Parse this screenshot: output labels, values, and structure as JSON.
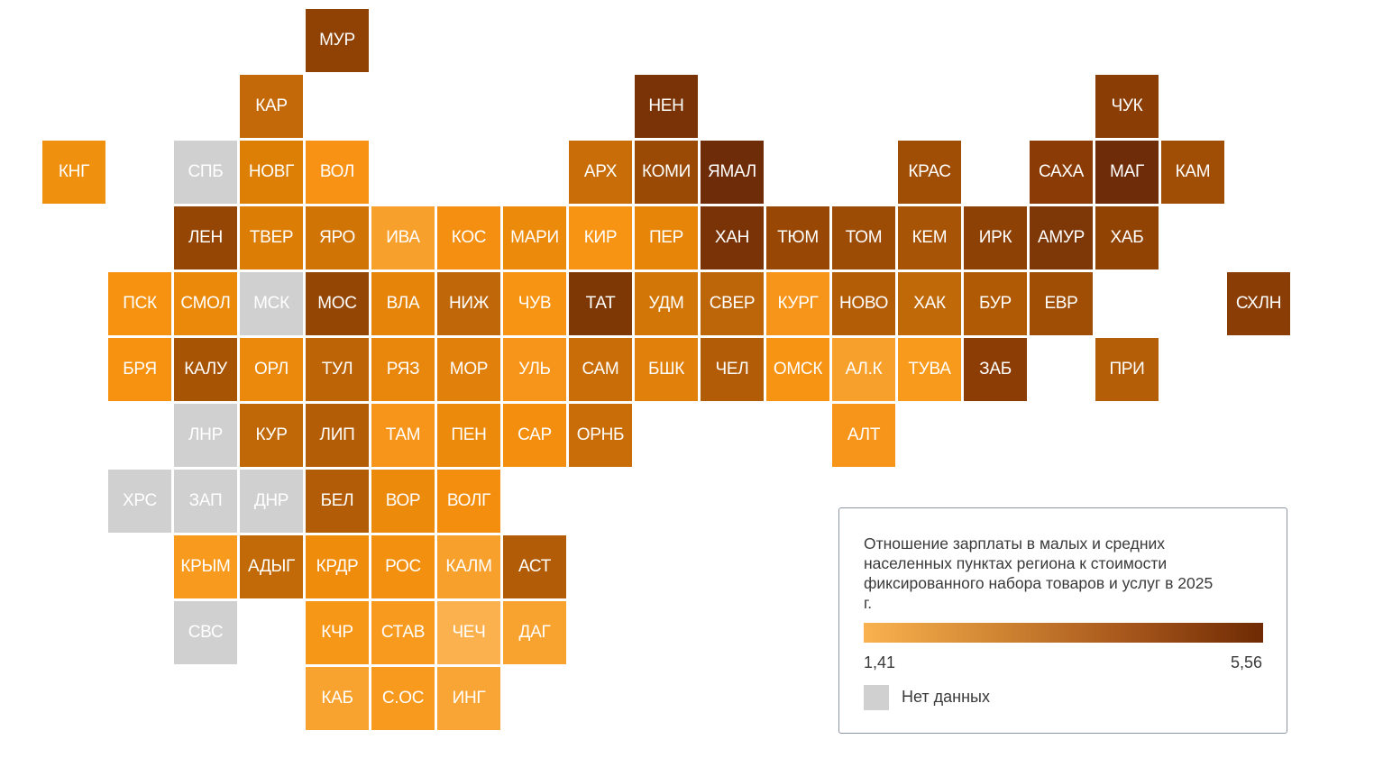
{
  "colors": {
    "no_data": "#d0d0d0",
    "scale_min": "#f9b24f",
    "scale_max": "#6e2a03"
  },
  "legend": {
    "title": "Отношение зарплаты в малых и средних населенных пунктах региона к стоимости фиксированного набора товаров и услуг в 2025 г.",
    "min": "1,41",
    "max": "5,56",
    "no_data": "Нет данных"
  },
  "tiles": [
    {
      "label": "МУР",
      "color": "#8f4204"
    },
    {
      "label": "КАР",
      "color": "#c4690a"
    },
    {
      "label": "НЕН",
      "color": "#7a3306"
    },
    {
      "label": "ЧУК",
      "color": "#8a3d05"
    },
    {
      "label": "КНГ",
      "color": "#f0900f"
    },
    {
      "label": "СПБ",
      "color": "#d0d0d0"
    },
    {
      "label": "НОВГ",
      "color": "#dd7f05"
    },
    {
      "label": "ВОЛ",
      "color": "#f79214"
    },
    {
      "label": "АРХ",
      "color": "#c86d08"
    },
    {
      "label": "КОМИ",
      "color": "#9b4a05"
    },
    {
      "label": "ЯМАЛ",
      "color": "#6f2c08"
    },
    {
      "label": "КРАС",
      "color": "#a04e05"
    },
    {
      "label": "САХА",
      "color": "#8b3c06"
    },
    {
      "label": "МАГ",
      "color": "#6e2c08"
    },
    {
      "label": "КАМ",
      "color": "#a04e06"
    },
    {
      "label": "ЛЕН",
      "color": "#954604"
    },
    {
      "label": "ТВЕР",
      "color": "#dc7d06"
    },
    {
      "label": "ЯРО",
      "color": "#cf7405"
    },
    {
      "label": "ИВА",
      "color": "#f7a02c"
    },
    {
      "label": "КОС",
      "color": "#f58f12"
    },
    {
      "label": "МАРИ",
      "color": "#ec8a0c"
    },
    {
      "label": "КИР",
      "color": "#f79414"
    },
    {
      "label": "ПЕР",
      "color": "#e78509"
    },
    {
      "label": "ХАН",
      "color": "#7a3306"
    },
    {
      "label": "ТЮМ",
      "color": "#984804"
    },
    {
      "label": "ТОМ",
      "color": "#9d4c05"
    },
    {
      "label": "КЕМ",
      "color": "#a85406"
    },
    {
      "label": "ИРК",
      "color": "#8e4105"
    },
    {
      "label": "АМУР",
      "color": "#7e3706"
    },
    {
      "label": "ХАБ",
      "color": "#914304"
    },
    {
      "label": "ПСК",
      "color": "#f6920f"
    },
    {
      "label": "СМОЛ",
      "color": "#eb890a"
    },
    {
      "label": "МСК",
      "color": "#d0d0d0"
    },
    {
      "label": "МОС",
      "color": "#944604"
    },
    {
      "label": "ВЛА",
      "color": "#e6840a"
    },
    {
      "label": "НИЖ",
      "color": "#c06809"
    },
    {
      "label": "ЧУВ",
      "color": "#f79414"
    },
    {
      "label": "ТАТ",
      "color": "#7e3806"
    },
    {
      "label": "УДМ",
      "color": "#d27607"
    },
    {
      "label": "СВЕР",
      "color": "#bc6509"
    },
    {
      "label": "КУРГ",
      "color": "#f7951a"
    },
    {
      "label": "НОВО",
      "color": "#b45d07"
    },
    {
      "label": "ХАК",
      "color": "#c06909"
    },
    {
      "label": "БУР",
      "color": "#b15a06"
    },
    {
      "label": "ЕВР",
      "color": "#a04e05"
    },
    {
      "label": "СХЛН",
      "color": "#8a3d05"
    },
    {
      "label": "БРЯ",
      "color": "#f6920f"
    },
    {
      "label": "КАЛУ",
      "color": "#a75404"
    },
    {
      "label": "ОРЛ",
      "color": "#ea890b"
    },
    {
      "label": "ТУЛ",
      "color": "#bc6406"
    },
    {
      "label": "РЯЗ",
      "color": "#e8870b"
    },
    {
      "label": "МОР",
      "color": "#e1800a"
    },
    {
      "label": "УЛЬ",
      "color": "#f7951a"
    },
    {
      "label": "САМ",
      "color": "#c86d08"
    },
    {
      "label": "БШК",
      "color": "#e1800a"
    },
    {
      "label": "ЧЕЛ",
      "color": "#b35c07"
    },
    {
      "label": "ОМСК",
      "color": "#f79414"
    },
    {
      "label": "АЛ.К",
      "color": "#f7a02c"
    },
    {
      "label": "ТУВА",
      "color": "#f89a1c"
    },
    {
      "label": "ЗАБ",
      "color": "#8b3d05"
    },
    {
      "label": "ПРИ",
      "color": "#b45e07"
    },
    {
      "label": "ЛНР",
      "color": "#d0d0d0"
    },
    {
      "label": "КУР",
      "color": "#c06808"
    },
    {
      "label": "ЛИП",
      "color": "#b45d07"
    },
    {
      "label": "ТАМ",
      "color": "#f7951a"
    },
    {
      "label": "ПЕН",
      "color": "#ec8a0c"
    },
    {
      "label": "САР",
      "color": "#f38e0e"
    },
    {
      "label": "ОРНБ",
      "color": "#c86d08"
    },
    {
      "label": "АЛТ",
      "color": "#f7951a"
    },
    {
      "label": "ХРС",
      "color": "#d0d0d0"
    },
    {
      "label": "ЗАП",
      "color": "#d0d0d0"
    },
    {
      "label": "ДНР",
      "color": "#d0d0d0"
    },
    {
      "label": "БЕЛ",
      "color": "#b35c07"
    },
    {
      "label": "ВОР",
      "color": "#ec8a0c"
    },
    {
      "label": "ВОЛГ",
      "color": "#f38e0e"
    },
    {
      "label": "КРЫМ",
      "color": "#f79a1e"
    },
    {
      "label": "АДЫГ",
      "color": "#c26a08"
    },
    {
      "label": "КРДР",
      "color": "#f08c0c"
    },
    {
      "label": "РОС",
      "color": "#f3900f"
    },
    {
      "label": "КАЛМ",
      "color": "#f7a02c"
    },
    {
      "label": "АСТ",
      "color": "#b35c07"
    },
    {
      "label": "СВС",
      "color": "#d0d0d0"
    },
    {
      "label": "КЧР",
      "color": "#f79718"
    },
    {
      "label": "СТАВ",
      "color": "#f79a1e"
    },
    {
      "label": "ЧЕЧ",
      "color": "#fbb24e"
    },
    {
      "label": "ДАГ",
      "color": "#f8a32f"
    },
    {
      "label": "КАБ",
      "color": "#f8a32f"
    },
    {
      "label": "С.ОС",
      "color": "#f79a1e"
    },
    {
      "label": "ИНГ",
      "color": "#f8a535"
    }
  ]
}
